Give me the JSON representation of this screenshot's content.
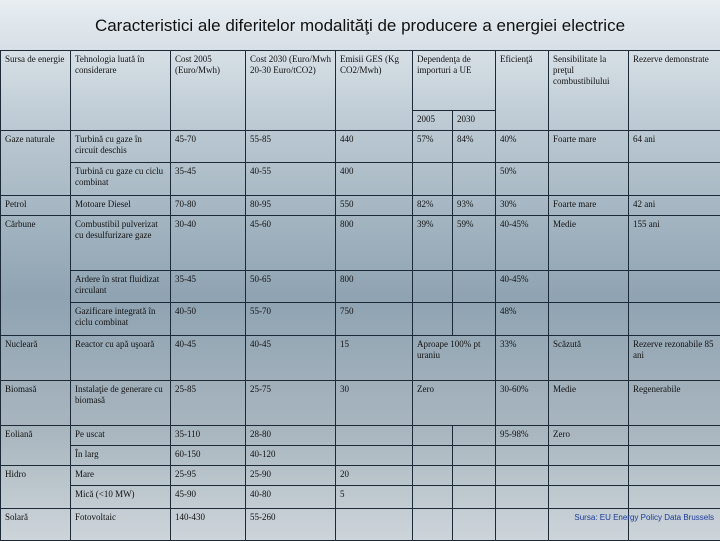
{
  "title": "Caracteristici ale diferitelor modalităţi de producere a energiei electrice",
  "table": {
    "columns": [
      "Sursa de energie",
      "Tehnologia luată în considerare",
      "Cost 2005 (Euro/Mwh)",
      "Cost 2030 (Euro/Mwh 20-30 Euro/tCO2)",
      "Emisii GES (Kg CO2/Mwh)",
      "Dependenţa de importuri a UE",
      "Eficienţă",
      "Sensibilitate la preţul combustibilului",
      "Rezerve demonstrate"
    ],
    "dependency_years": [
      "2005",
      "2030"
    ],
    "rows": [
      {
        "source": "Gaze naturale",
        "tech": "Turbină cu gaze în circuit deschis",
        "cost2005": "45-70",
        "cost2030": "55-85",
        "ghg": "440",
        "dep2005": "57%",
        "dep2030": "84%",
        "efficiency": "40%",
        "sensitivity": "Foarte mare",
        "reserves": "64 ani"
      },
      {
        "tech": "Turbină cu gaze cu ciclu combinat",
        "cost2005": "35-45",
        "cost2030": "40-55",
        "ghg": "400",
        "efficiency": "50%"
      },
      {
        "source": "Petrol",
        "tech": "Motoare Diesel",
        "cost2005": "70-80",
        "cost2030": "80-95",
        "ghg": "550",
        "dep2005": "82%",
        "dep2030": "93%",
        "efficiency": "30%",
        "sensitivity": "Foarte mare",
        "reserves": "42 ani"
      },
      {
        "source": "Cărbune",
        "tech": "Combustibil pulverizat cu desulfurizare gaze",
        "cost2005": "30-40",
        "cost2030": "45-60",
        "ghg": "800",
        "dep2005": "39%",
        "dep2030": "59%",
        "efficiency": "40-45%",
        "sensitivity": "Medie",
        "reserves": "155 ani"
      },
      {
        "tech": "Ardere în strat fluidizat circulant",
        "cost2005": "35-45",
        "cost2030": "50-65",
        "ghg": "800",
        "efficiency": "40-45%"
      },
      {
        "tech": "Gazificare integrată în ciclu combinat",
        "cost2005": "40-50",
        "cost2030": "55-70",
        "ghg": "750",
        "efficiency": "48%"
      },
      {
        "source": "Nucleară",
        "tech": "Reactor cu apă uşoară",
        "cost2005": "40-45",
        "cost2030": "40-45",
        "ghg": "15",
        "dep": "Aproape 100% pt uraniu",
        "efficiency": "33%",
        "sensitivity": "Scăzută",
        "reserves": "Rezerve rezonabile 85 ani"
      },
      {
        "source": "Biomasă",
        "tech": "Instalaţie de generare cu biomasă",
        "cost2005": "25-85",
        "cost2030": "25-75",
        "ghg": "30",
        "dep": "Zero",
        "efficiency": "30-60%",
        "sensitivity": "Medie",
        "reserves": "Regenerabile"
      },
      {
        "source": "Eoliană",
        "tech": "Pe uscat",
        "cost2005": "35-110",
        "cost2030": "28-80",
        "efficiency": "95-98%",
        "sensitivity": "Zero"
      },
      {
        "tech": "În larg",
        "cost2005": "60-150",
        "cost2030": "40-120"
      },
      {
        "source": "Hidro",
        "tech": "Mare",
        "cost2005": "25-95",
        "cost2030": "25-90",
        "ghg": "20"
      },
      {
        "tech": "Mică (<10 MW)",
        "cost2005": "45-90",
        "cost2030": "40-80",
        "ghg": "5"
      },
      {
        "source": "Solară",
        "tech": "Fotovoltaic",
        "cost2005": "140-430",
        "cost2030": "55-260"
      }
    ]
  },
  "source_note": "Sursa: EU Energy Policy Data Brussels"
}
